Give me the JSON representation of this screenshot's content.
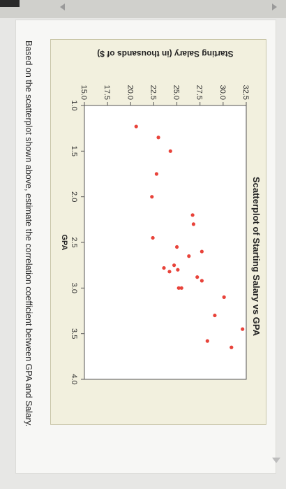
{
  "question": "Based on the scatterplot shown above, estimate the correlation coefficient between GPA and Salary.",
  "colors": {
    "point": "#e8433a",
    "axis": "#555555",
    "plot_bg": "#ffffff",
    "panel_bg": "#f2f0de"
  },
  "chart_data": {
    "type": "scatter",
    "title": "Scatterplot of Starting Salary vs GPA",
    "xlabel": "GPA",
    "ylabel": "Starting Salary (in thousands of $)",
    "xlim": [
      1.0,
      4.0
    ],
    "ylim": [
      15.0,
      32.5
    ],
    "x_ticks": [
      "1.0",
      "1.5",
      "2.0",
      "2.5",
      "3.0",
      "3.5",
      "4.0"
    ],
    "y_ticks": [
      "15.0",
      "17.5",
      "20.0",
      "22.5",
      "25.0",
      "27.5",
      "30.0",
      "32.5"
    ],
    "grid": false,
    "points": [
      {
        "x": 1.23,
        "y": 20.6
      },
      {
        "x": 1.35,
        "y": 23.0
      },
      {
        "x": 1.5,
        "y": 24.3
      },
      {
        "x": 1.75,
        "y": 22.8
      },
      {
        "x": 2.0,
        "y": 22.3
      },
      {
        "x": 2.2,
        "y": 26.7
      },
      {
        "x": 2.3,
        "y": 26.8
      },
      {
        "x": 2.45,
        "y": 22.4
      },
      {
        "x": 2.55,
        "y": 25.0
      },
      {
        "x": 2.6,
        "y": 27.7
      },
      {
        "x": 2.65,
        "y": 26.3
      },
      {
        "x": 2.75,
        "y": 24.7
      },
      {
        "x": 2.78,
        "y": 23.6
      },
      {
        "x": 2.8,
        "y": 25.1
      },
      {
        "x": 2.82,
        "y": 24.2
      },
      {
        "x": 2.88,
        "y": 27.2
      },
      {
        "x": 2.92,
        "y": 27.7
      },
      {
        "x": 3.0,
        "y": 25.5
      },
      {
        "x": 3.0,
        "y": 25.2
      },
      {
        "x": 3.1,
        "y": 30.1
      },
      {
        "x": 3.3,
        "y": 29.1
      },
      {
        "x": 3.45,
        "y": 32.1
      },
      {
        "x": 3.58,
        "y": 28.3
      },
      {
        "x": 3.65,
        "y": 30.9
      }
    ]
  }
}
